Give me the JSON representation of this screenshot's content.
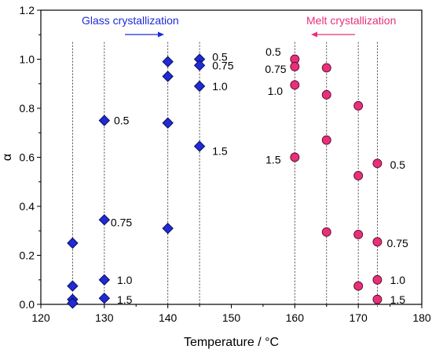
{
  "chart_data": {
    "type": "scatter",
    "xlabel": "Temperature / °C",
    "ylabel": "α",
    "xlim": [
      120,
      180
    ],
    "ylim": [
      0,
      1.2
    ],
    "x_ticks": [
      "120",
      "130",
      "140",
      "150",
      "160",
      "170",
      "180"
    ],
    "y_ticks": [
      "0.0",
      "0.2",
      "0.4",
      "0.6",
      "0.8",
      "1.0",
      "1.2"
    ],
    "reference_lines_x": [
      125,
      130,
      140,
      145,
      160,
      165,
      170,
      173
    ],
    "series": [
      {
        "name": "Glass crystallization",
        "marker": "diamond",
        "color": "#1f2bd6",
        "points": [
          {
            "x": 125,
            "y": 0.25
          },
          {
            "x": 125,
            "y": 0.075
          },
          {
            "x": 125,
            "y": 0.02
          },
          {
            "x": 125,
            "y": 0.005
          },
          {
            "x": 130,
            "y": 0.75
          },
          {
            "x": 130,
            "y": 0.345
          },
          {
            "x": 130,
            "y": 0.1
          },
          {
            "x": 130,
            "y": 0.025
          },
          {
            "x": 140,
            "y": 0.99
          },
          {
            "x": 140,
            "y": 0.93
          },
          {
            "x": 140,
            "y": 0.74
          },
          {
            "x": 140,
            "y": 0.31
          },
          {
            "x": 145,
            "y": 1.0
          },
          {
            "x": 145,
            "y": 0.975
          },
          {
            "x": 145,
            "y": 0.89
          },
          {
            "x": 145,
            "y": 0.645
          }
        ]
      },
      {
        "name": "Melt crystallization",
        "marker": "circle",
        "color": "#e8307a",
        "points": [
          {
            "x": 160,
            "y": 1.0
          },
          {
            "x": 160,
            "y": 0.97
          },
          {
            "x": 160,
            "y": 0.895
          },
          {
            "x": 160,
            "y": 0.6
          },
          {
            "x": 165,
            "y": 0.965
          },
          {
            "x": 165,
            "y": 0.855
          },
          {
            "x": 165,
            "y": 0.67
          },
          {
            "x": 165,
            "y": 0.295
          },
          {
            "x": 170,
            "y": 0.81
          },
          {
            "x": 170,
            "y": 0.525
          },
          {
            "x": 170,
            "y": 0.285
          },
          {
            "x": 170,
            "y": 0.075
          },
          {
            "x": 173,
            "y": 0.575
          },
          {
            "x": 173,
            "y": 0.255
          },
          {
            "x": 173,
            "y": 0.1
          },
          {
            "x": 173,
            "y": 0.02
          }
        ]
      }
    ],
    "annotations": [
      {
        "text": "0.5",
        "x": 131.5,
        "y": 0.75
      },
      {
        "text": "0.75",
        "x": 131.0,
        "y": 0.335
      },
      {
        "text": "1.0",
        "x": 132.0,
        "y": 0.1
      },
      {
        "text": "1.5",
        "x": 132.0,
        "y": 0.02
      },
      {
        "text": "0.5",
        "x": 147.0,
        "y": 1.01
      },
      {
        "text": "0.75",
        "x": 147.0,
        "y": 0.975
      },
      {
        "text": "1.0",
        "x": 147.0,
        "y": 0.89
      },
      {
        "text": "1.5",
        "x": 147.0,
        "y": 0.625
      },
      {
        "text": "0.5",
        "x": 155.4,
        "y": 1.03
      },
      {
        "text": "0.75",
        "x": 155.3,
        "y": 0.96
      },
      {
        "text": "1.0",
        "x": 155.7,
        "y": 0.87
      },
      {
        "text": "1.5",
        "x": 155.4,
        "y": 0.59
      },
      {
        "text": "0.5",
        "x": 175.0,
        "y": 0.57
      },
      {
        "text": "0.75",
        "x": 174.5,
        "y": 0.25
      },
      {
        "text": "1.0",
        "x": 175.0,
        "y": 0.1
      },
      {
        "text": "1.5",
        "x": 175.0,
        "y": 0.02
      }
    ],
    "legend": {
      "glass": {
        "label": "Glass crystallization",
        "color": "#1f2bd6",
        "arrow": "right"
      },
      "melt": {
        "label": "Melt crystallization",
        "color": "#e8307a",
        "arrow": "left"
      }
    }
  }
}
